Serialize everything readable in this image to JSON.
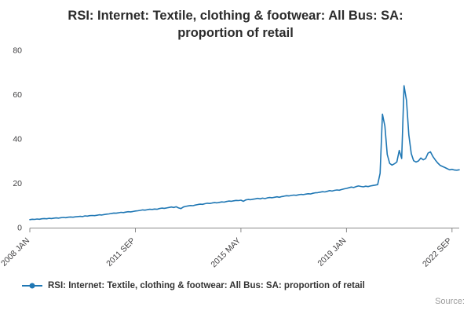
{
  "chart_data": {
    "type": "line",
    "title": "RSI: Internet: Textile, clothing & footwear: All Bus: SA: proportion of retail",
    "x_tick_labels": [
      "2008 JAN",
      "2011 SEP",
      "2015 MAY",
      "2019 JAN",
      "2022 SEP"
    ],
    "x_tick_indices": [
      0,
      44,
      88,
      132,
      176
    ],
    "y_ticks": [
      0,
      20,
      40,
      60,
      80
    ],
    "ylim": [
      0,
      80
    ],
    "grid": "off",
    "legend_position": "bottom-left",
    "line_color": "#1f77b4",
    "x_start": "2008 JAN",
    "x_end": "2022 DEC",
    "x_frequency": "monthly",
    "series": [
      {
        "name": "RSI: Internet: Textile, clothing & footwear: All Bus: SA: proportion of retail",
        "values": [
          3.6,
          3.8,
          3.7,
          3.9,
          3.8,
          4.0,
          4.1,
          4.0,
          4.2,
          4.1,
          4.3,
          4.4,
          4.3,
          4.5,
          4.6,
          4.5,
          4.7,
          4.8,
          4.7,
          4.9,
          5.0,
          5.1,
          5.0,
          5.3,
          5.2,
          5.4,
          5.5,
          5.4,
          5.6,
          5.8,
          5.7,
          5.9,
          6.1,
          6.2,
          6.4,
          6.6,
          6.5,
          6.7,
          6.9,
          6.8,
          7.0,
          7.2,
          7.1,
          7.3,
          7.5,
          7.6,
          7.8,
          8.0,
          7.9,
          8.1,
          8.3,
          8.2,
          8.4,
          8.3,
          8.6,
          8.8,
          8.7,
          8.9,
          9.1,
          9.3,
          9.1,
          9.4,
          8.9,
          8.6,
          9.3,
          9.6,
          9.8,
          10.0,
          9.9,
          10.2,
          10.4,
          10.6,
          10.5,
          10.8,
          11.0,
          10.9,
          11.1,
          11.3,
          11.2,
          11.4,
          11.6,
          11.5,
          11.8,
          12.0,
          11.9,
          12.1,
          12.3,
          12.2,
          12.4,
          11.9,
          12.5,
          12.7,
          12.6,
          12.8,
          13.0,
          13.2,
          13.0,
          13.3,
          13.1,
          13.4,
          13.6,
          13.5,
          13.7,
          13.9,
          13.7,
          14.0,
          14.2,
          14.4,
          14.3,
          14.5,
          14.7,
          14.6,
          14.8,
          15.0,
          14.9,
          15.1,
          15.3,
          15.2,
          15.5,
          15.7,
          15.8,
          16.0,
          16.2,
          16.1,
          16.4,
          16.7,
          16.5,
          16.8,
          17.0,
          16.9,
          17.2,
          17.5,
          17.7,
          18.0,
          18.3,
          18.1,
          18.5,
          18.8,
          18.6,
          18.4,
          18.7,
          18.5,
          18.8,
          19.0,
          19.2,
          19.4,
          24.5,
          51.2,
          45.8,
          33.0,
          29.0,
          28.2,
          28.8,
          29.6,
          34.8,
          31.2,
          64.0,
          57.5,
          41.8,
          33.4,
          30.2,
          29.6,
          30.1,
          31.4,
          30.6,
          31.2,
          33.6,
          34.2,
          32.1,
          30.6,
          29.2,
          28.1,
          27.6,
          27.1,
          26.6,
          26.1,
          26.3,
          26.0,
          25.9,
          26.1
        ]
      }
    ]
  },
  "footer": {
    "source_label": "Source:"
  }
}
